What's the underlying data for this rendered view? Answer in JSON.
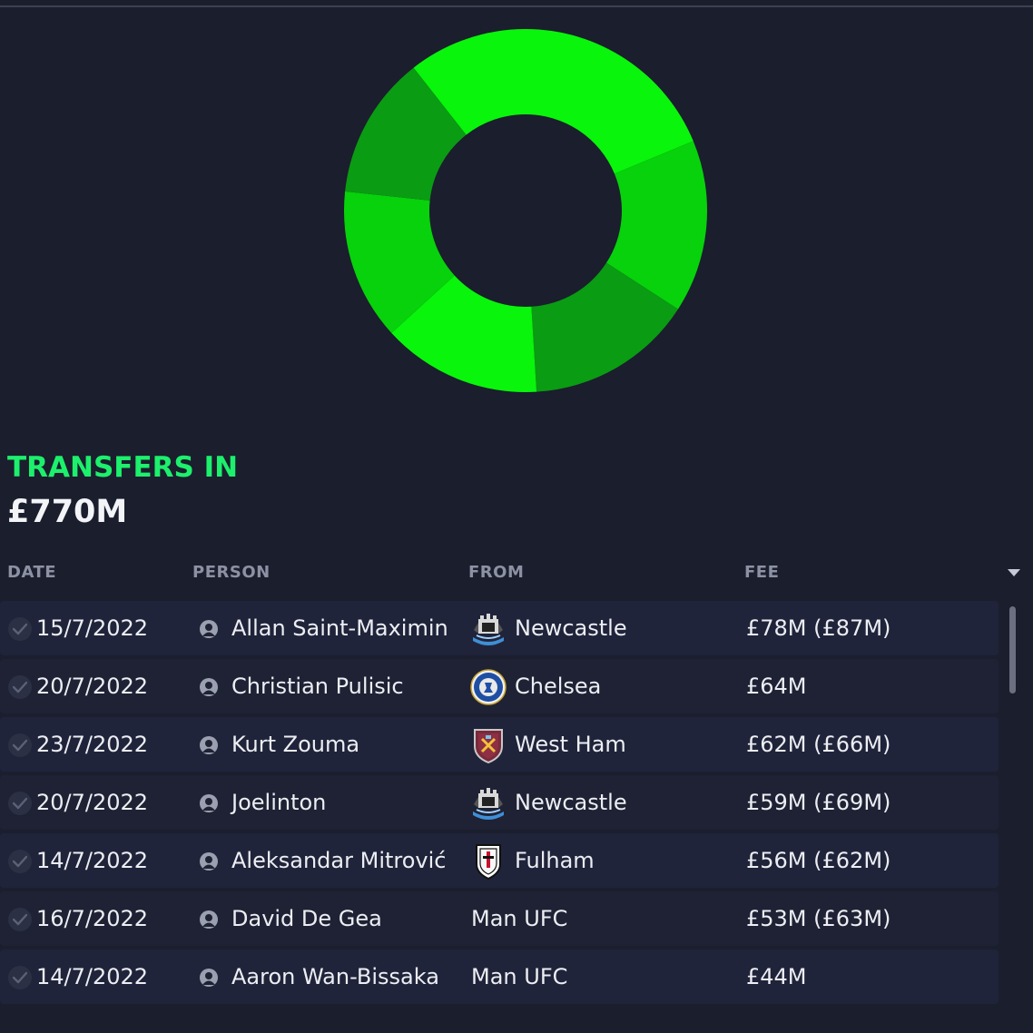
{
  "colors": {
    "background": "#1b1e2d",
    "accent_green": "#1cf06c",
    "segment_bright": "#09f50b",
    "segment_mid": "#07d20b",
    "segment_dark": "#0a9c12"
  },
  "chart_data": {
    "type": "pie",
    "style": "donut",
    "series": [
      {
        "values": [
          78,
          64,
          62,
          59,
          56,
          53,
          44
        ]
      }
    ]
  },
  "section": {
    "title": "TRANSFERS IN",
    "total": "£770M"
  },
  "table": {
    "columns": [
      "DATE",
      "PERSON",
      "FROM",
      "FEE"
    ],
    "sort_icon": "sort-desc-icon",
    "rows": [
      {
        "date": "15/7/2022",
        "person": "Allan Saint-Maximin",
        "from": "Newcastle",
        "crest": "newcastle-crest-icon",
        "fee": "£78M (£87M)"
      },
      {
        "date": "20/7/2022",
        "person": "Christian Pulisic",
        "from": "Chelsea",
        "crest": "chelsea-crest-icon",
        "fee": "£64M"
      },
      {
        "date": "23/7/2022",
        "person": "Kurt Zouma",
        "from": "West Ham",
        "crest": "west-ham-crest-icon",
        "fee": "£62M (£66M)"
      },
      {
        "date": "20/7/2022",
        "person": "Joelinton",
        "from": "Newcastle",
        "crest": "newcastle-crest-icon",
        "fee": "£59M (£69M)"
      },
      {
        "date": "14/7/2022",
        "person": "Aleksandar Mitrović",
        "from": "Fulham",
        "crest": "fulham-crest-icon",
        "fee": "£56M (£62M)"
      },
      {
        "date": "16/7/2022",
        "person": "David De Gea",
        "from": "Man UFC",
        "crest": "",
        "fee": "£53M (£63M)"
      },
      {
        "date": "14/7/2022",
        "person": "Aaron Wan-Bissaka",
        "from": "Man UFC",
        "crest": "",
        "fee": "£44M"
      }
    ]
  }
}
